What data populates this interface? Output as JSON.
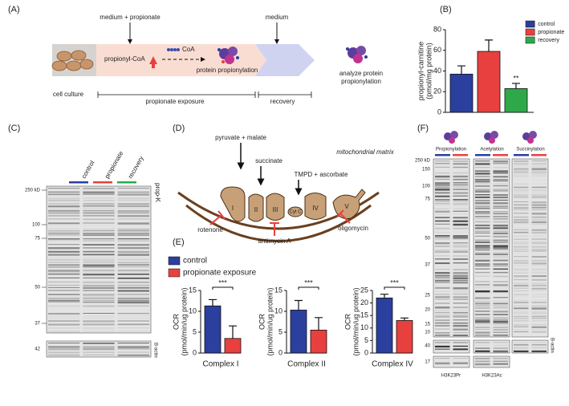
{
  "panel_labels": [
    "(A)",
    "(B)",
    "(C)",
    "(D)",
    "(E)",
    "(F)"
  ],
  "panel_a": {
    "treatments": [
      "medium + propionate",
      "medium"
    ],
    "metabolite": "propionyl-CoA",
    "cofactor": "CoA",
    "product": "protein propionylation",
    "analysis": [
      "analyze protein",
      "propionylation"
    ],
    "timeline": [
      "cell culture",
      "propionate exposure",
      "recovery"
    ]
  },
  "panel_c": {
    "lanes": [
      "control",
      "propionate",
      "recovery"
    ],
    "lane_colors": [
      "#2b3f9e",
      "#e8403e",
      "#2fa84a"
    ],
    "markers": [
      "250 kD",
      "100",
      "75",
      "50",
      "37"
    ],
    "antibody": "prop-K",
    "loading_marker": "42",
    "loading": "B-actin"
  },
  "panel_d": {
    "substrates": [
      "pyruvate + malate",
      "succinate",
      "TMPD + ascorbate"
    ],
    "compartment": "mitochondrial matrix",
    "complexes": [
      "I",
      "II",
      "III",
      "Cyt C",
      "IV",
      "V"
    ],
    "inhibitors": [
      "rotenone",
      "antimycin A",
      "oligomycin"
    ]
  },
  "panel_f": {
    "marks": [
      "Propionylation",
      "Acetylation",
      "Succinylation"
    ],
    "markers": [
      "250 kD",
      "150",
      "100",
      "75",
      "50",
      "37",
      "25",
      "20",
      "15",
      "10"
    ],
    "loading_marker": "40",
    "loading": "B-actin",
    "histone_marker": "17",
    "histone_marks": [
      "H3K23Pr",
      "H3K23Ac"
    ]
  },
  "chart_data": [
    {
      "type": "bar",
      "ylabel": [
        "propionyl-carnitine",
        "(pmol/mg protein)"
      ],
      "categories": [
        null
      ],
      "legend": "right",
      "annotation": "**",
      "ylim": [
        0,
        80
      ],
      "yticks": [
        0,
        20,
        40,
        60,
        80
      ],
      "series": [
        {
          "name": "control",
          "color": "#2b3f9e",
          "values": [
            37
          ],
          "errors": [
            8
          ]
        },
        {
          "name": "propionate",
          "color": "#e8403e",
          "values": [
            59
          ],
          "errors": [
            11
          ]
        },
        {
          "name": "recovery",
          "color": "#2fa84a",
          "values": [
            23
          ],
          "errors": [
            5
          ]
        }
      ]
    },
    {
      "type": "bar",
      "ylabel": [
        "OCR",
        "(pmol/min/ug protein)"
      ],
      "xlabel": "Complex I",
      "categories": [
        null
      ],
      "legend": "top",
      "annotation": "***",
      "ylim": [
        0,
        15
      ],
      "yticks": [
        0,
        5,
        10,
        15
      ],
      "series": [
        {
          "name": "control",
          "color": "#2b3f9e",
          "values": [
            11.3
          ],
          "errors": [
            1.5
          ]
        },
        {
          "name": "propionate exposure",
          "color": "#e8403e",
          "values": [
            3.5
          ],
          "errors": [
            3
          ]
        }
      ]
    },
    {
      "type": "bar",
      "ylabel": [
        "OCR",
        "(pmol/min/ug protein)"
      ],
      "xlabel": "Complex II",
      "categories": [
        null
      ],
      "annotation": "***",
      "ylim": [
        0,
        15
      ],
      "yticks": [
        0,
        5,
        10,
        15
      ],
      "series": [
        {
          "color": "#2b3f9e",
          "values": [
            10.3
          ],
          "errors": [
            2.3
          ]
        },
        {
          "color": "#e8403e",
          "values": [
            5.5
          ],
          "errors": [
            3
          ]
        }
      ]
    },
    {
      "type": "bar",
      "ylabel": [
        "OCR",
        "(pmol/min/ug protein)"
      ],
      "xlabel": "Complex IV",
      "categories": [
        null
      ],
      "annotation": "***",
      "ylim": [
        0,
        25
      ],
      "yticks": [
        0,
        5,
        10,
        15,
        20,
        25
      ],
      "series": [
        {
          "color": "#2b3f9e",
          "values": [
            22
          ],
          "errors": [
            1.5
          ]
        },
        {
          "color": "#e8403e",
          "values": [
            13
          ],
          "errors": [
            1
          ]
        }
      ]
    }
  ]
}
